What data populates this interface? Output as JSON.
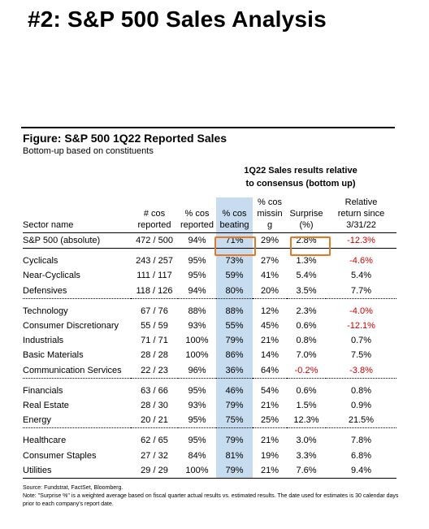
{
  "slide_title": "#2: S&P 500 Sales Analysis",
  "figure": {
    "title": "Figure: S&P 500 1Q22 Reported Sales",
    "subtitle": "Bottom-up based on constituents"
  },
  "group_header": {
    "line1": "1Q22 Sales results relative",
    "line2": "to consensus (bottom up)"
  },
  "headers": {
    "sector": [
      "Sector name"
    ],
    "cos_reported": [
      "# cos",
      "reported"
    ],
    "pct_reported": [
      "% cos",
      "reported"
    ],
    "pct_beating": [
      "% cos",
      "beating"
    ],
    "pct_missing": [
      "% cos",
      "missin",
      "g"
    ],
    "surprise": [
      "Surprise",
      "(%)"
    ],
    "relative_return": [
      "Relative",
      "return since",
      "3/31/22"
    ]
  },
  "rows": [
    {
      "sector": "S&P 500 (absolute)",
      "reported": "472 / 500",
      "pct_reported": "94%",
      "beating": "71%",
      "missing": "29%",
      "surprise": "2.8%",
      "surprise_neg": false,
      "ret": "-12.3%",
      "ret_neg": true
    },
    {
      "sector": "Cyclicals",
      "reported": "243 / 257",
      "pct_reported": "95%",
      "beating": "73%",
      "missing": "27%",
      "surprise": "1.3%",
      "surprise_neg": false,
      "ret": "-4.6%",
      "ret_neg": true
    },
    {
      "sector": "Near-Cyclicals",
      "reported": "111 / 117",
      "pct_reported": "95%",
      "beating": "59%",
      "missing": "41%",
      "surprise": "5.4%",
      "surprise_neg": false,
      "ret": "5.4%",
      "ret_neg": false
    },
    {
      "sector": "Defensives",
      "reported": "118 / 126",
      "pct_reported": "94%",
      "beating": "80%",
      "missing": "20%",
      "surprise": "3.5%",
      "surprise_neg": false,
      "ret": "7.7%",
      "ret_neg": false
    },
    {
      "sector": "Technology",
      "reported": "67 / 76",
      "pct_reported": "88%",
      "beating": "88%",
      "missing": "12%",
      "surprise": "2.3%",
      "surprise_neg": false,
      "ret": "-4.0%",
      "ret_neg": true
    },
    {
      "sector": "Consumer Discretionary",
      "reported": "55 / 59",
      "pct_reported": "93%",
      "beating": "55%",
      "missing": "45%",
      "surprise": "0.6%",
      "surprise_neg": false,
      "ret": "-12.1%",
      "ret_neg": true
    },
    {
      "sector": "Industrials",
      "reported": "71 / 71",
      "pct_reported": "100%",
      "beating": "79%",
      "missing": "21%",
      "surprise": "0.8%",
      "surprise_neg": false,
      "ret": "0.7%",
      "ret_neg": false
    },
    {
      "sector": "Basic Materials",
      "reported": "28 / 28",
      "pct_reported": "100%",
      "beating": "86%",
      "missing": "14%",
      "surprise": "7.0%",
      "surprise_neg": false,
      "ret": "7.5%",
      "ret_neg": false
    },
    {
      "sector": "Communication Services",
      "reported": "22 / 23",
      "pct_reported": "96%",
      "beating": "36%",
      "missing": "64%",
      "surprise": "-0.2%",
      "surprise_neg": true,
      "ret": "-3.8%",
      "ret_neg": true
    },
    {
      "sector": "Financials",
      "reported": "63 / 66",
      "pct_reported": "95%",
      "beating": "46%",
      "missing": "54%",
      "surprise": "0.6%",
      "surprise_neg": false,
      "ret": "0.8%",
      "ret_neg": false
    },
    {
      "sector": "Real Estate",
      "reported": "28 / 30",
      "pct_reported": "93%",
      "beating": "79%",
      "missing": "21%",
      "surprise": "1.5%",
      "surprise_neg": false,
      "ret": "0.9%",
      "ret_neg": false
    },
    {
      "sector": "Energy",
      "reported": "20 / 21",
      "pct_reported": "95%",
      "beating": "75%",
      "missing": "25%",
      "surprise": "12.3%",
      "surprise_neg": false,
      "ret": "21.5%",
      "ret_neg": false
    },
    {
      "sector": "Healthcare",
      "reported": "62 / 65",
      "pct_reported": "95%",
      "beating": "79%",
      "missing": "21%",
      "surprise": "3.0%",
      "surprise_neg": false,
      "ret": "7.8%",
      "ret_neg": false
    },
    {
      "sector": "Consumer Staples",
      "reported": "27 / 32",
      "pct_reported": "84%",
      "beating": "81%",
      "missing": "19%",
      "surprise": "3.3%",
      "surprise_neg": false,
      "ret": "6.8%",
      "ret_neg": false
    },
    {
      "sector": "Utilities",
      "reported": "29 / 29",
      "pct_reported": "100%",
      "beating": "79%",
      "missing": "21%",
      "surprise": "7.6%",
      "surprise_neg": false,
      "ret": "9.4%",
      "ret_neg": false
    }
  ],
  "colors": {
    "negative": "#d00000",
    "highlight_column": "#c8dcef",
    "callout_box": "#e87722"
  },
  "footnote": {
    "source": "Source: Fundstrat, FactSet, Bloomberg.",
    "note": "Note: \"Surprise %\" is a weighted average based on fiscal quarter actual results vs. estimated results.  The date used for estimates is 30 calendar days prior to each company's report date."
  }
}
